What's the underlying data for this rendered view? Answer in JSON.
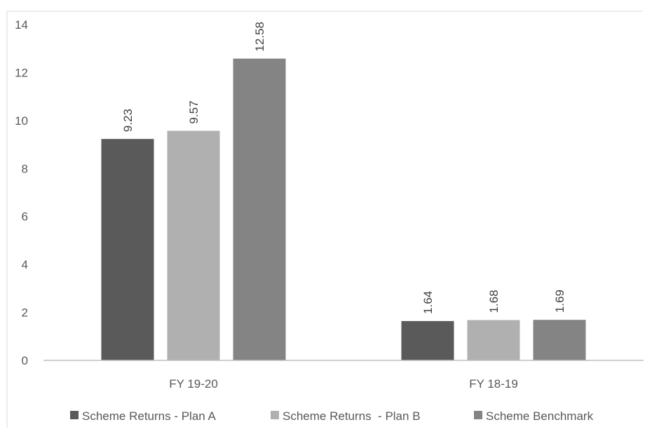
{
  "chart_data": {
    "type": "bar",
    "title": "",
    "xlabel": "",
    "ylabel": "",
    "categories": [
      "FY 19-20",
      "FY 18-19"
    ],
    "series": [
      {
        "name": "Scheme Returns - Plan A",
        "values": [
          9.23,
          1.64
        ],
        "color": "#5a5a5a"
      },
      {
        "name": "Scheme Returns  - Plan B",
        "values": [
          9.57,
          1.68
        ],
        "color": "#b0b0b0"
      },
      {
        "name": "Scheme Benchmark",
        "values": [
          12.58,
          1.69
        ],
        "color": "#848484"
      }
    ],
    "data_labels": [
      [
        "9.23",
        "1.64"
      ],
      [
        "9.57",
        "1.68"
      ],
      [
        "12.58",
        "1.69"
      ]
    ],
    "ylim": [
      0,
      14
    ],
    "yticks": [
      0,
      2,
      4,
      6,
      8,
      10,
      12,
      14
    ],
    "grid": false,
    "legend": "bottom"
  }
}
